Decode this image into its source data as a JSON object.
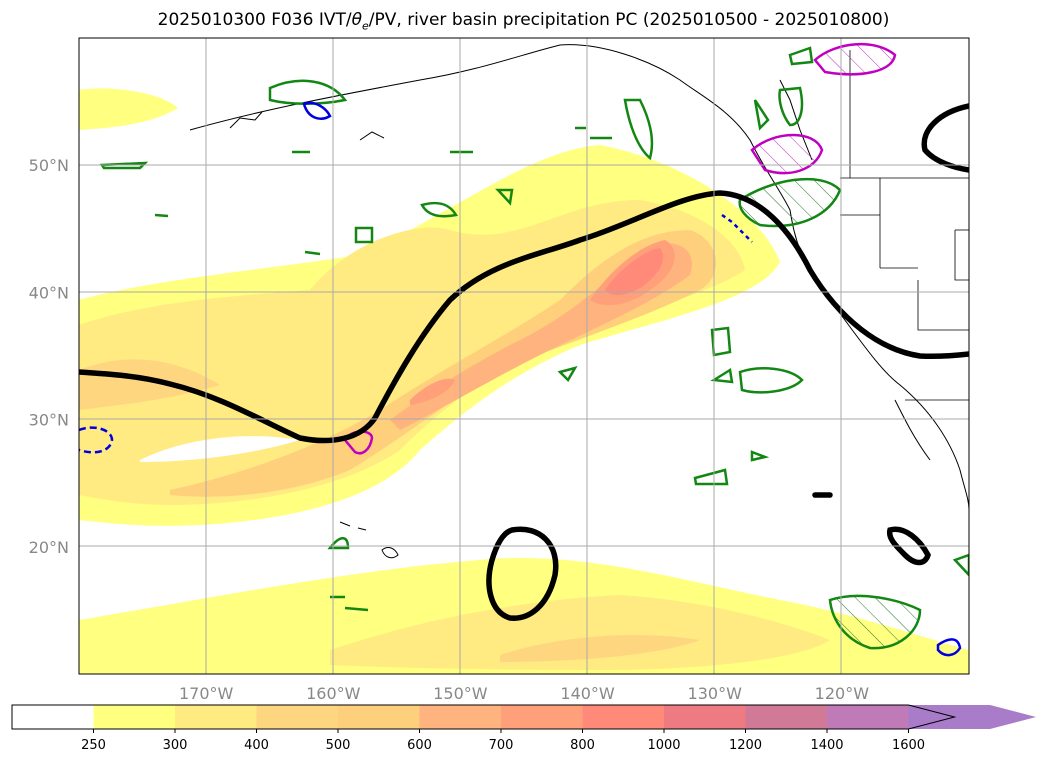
{
  "title": {
    "prefix": "2025010300 F036 IVT/",
    "theta": "θ",
    "theta_sub": "e",
    "suffix": "/PV, river basin precipitation PC (2025010500 - 2025010800)"
  },
  "map": {
    "projection": "PlateCarree",
    "lon_range": [
      -180,
      -110
    ],
    "lat_range": [
      10,
      60
    ],
    "gridlines": true,
    "lat_ticks": [
      {
        "value": 20,
        "label": "20°N"
      },
      {
        "value": 30,
        "label": "30°N"
      },
      {
        "value": 40,
        "label": "40°N"
      },
      {
        "value": 50,
        "label": "50°N"
      }
    ],
    "lon_ticks": [
      {
        "value": -170,
        "label": "170°W"
      },
      {
        "value": -160,
        "label": "160°W"
      },
      {
        "value": -150,
        "label": "150°W"
      },
      {
        "value": -140,
        "label": "140°W"
      },
      {
        "value": -130,
        "label": "130°W"
      },
      {
        "value": -120,
        "label": "120°W"
      }
    ],
    "layers": {
      "ivt_fill": "shaded IVT",
      "pv_contour": "black thick contour",
      "theta_contours": [
        "green",
        "magenta",
        "blue"
      ],
      "coastlines": "black"
    }
  },
  "colorbar": {
    "extend": "max",
    "levels": [
      {
        "label": "250",
        "color": "#ffffff"
      },
      {
        "label": "300",
        "color": "#ffff80"
      },
      {
        "label": "400",
        "color": "#ffeb82"
      },
      {
        "label": "500",
        "color": "#ffd680"
      },
      {
        "label": "600",
        "color": "#ffd07c"
      },
      {
        "label": "700",
        "color": "#ffb37e"
      },
      {
        "label": "800",
        "color": "#ffa07a"
      },
      {
        "label": "1000",
        "color": "#ff8a7a"
      },
      {
        "label": "1200",
        "color": "#ee7a82"
      },
      {
        "label": "1400",
        "color": "#d07a98"
      },
      {
        "label": "1600",
        "color": "#c07ab8"
      },
      {
        "label": "",
        "color": "#a87cc8"
      }
    ]
  }
}
